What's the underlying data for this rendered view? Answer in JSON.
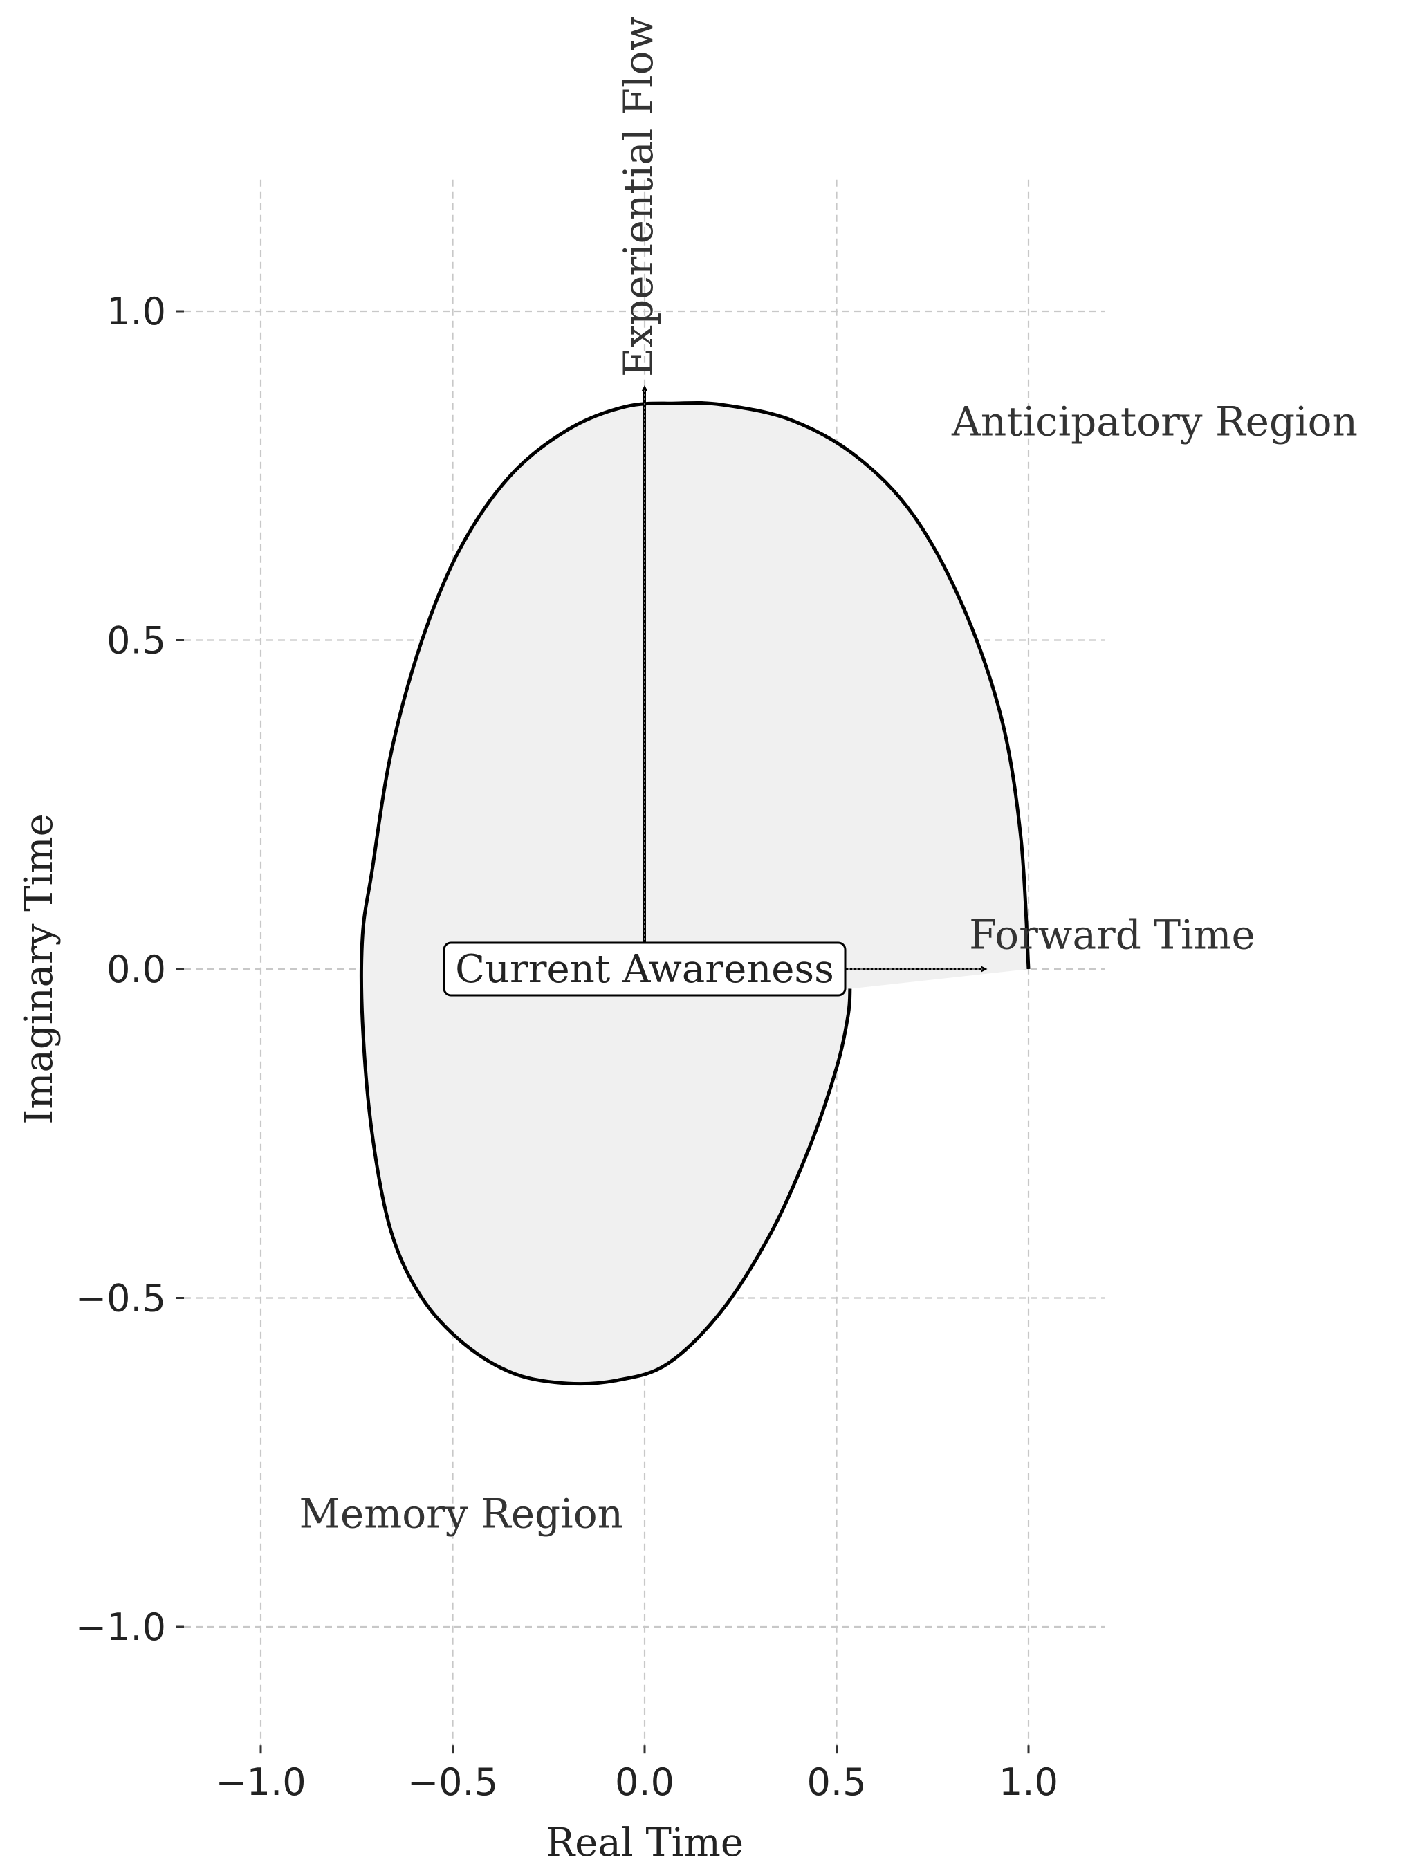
{
  "chart_data": {
    "type": "line",
    "title": "",
    "xlabel": "Real Time",
    "ylabel": "Imaginary Time",
    "xlim": [
      -1.2,
      1.2
    ],
    "ylim": [
      -1.18,
      1.2
    ],
    "xticks": [
      -1.0,
      -0.5,
      0.0,
      0.5,
      1.0
    ],
    "xtick_labels": [
      "−1.0",
      "−0.5",
      "0.0",
      "0.5",
      "1.0"
    ],
    "yticks": [
      -1.0,
      -0.5,
      0.0,
      0.5,
      1.0
    ],
    "ytick_labels": [
      "−1.0",
      "−0.5",
      "0.0",
      "0.5",
      "1.0"
    ],
    "grid": true,
    "curve": {
      "description_points": "closed spiral-like loop, shaded",
      "fill_color": "#f0f0f0",
      "line_color": "#000000",
      "x": [
        1.0,
        0.98,
        0.93,
        0.83,
        0.7,
        0.55,
        0.38,
        0.2,
        0.08,
        -0.05,
        -0.2,
        -0.35,
        -0.48,
        -0.58,
        -0.66,
        -0.71,
        -0.735,
        -0.735,
        -0.71,
        -0.66,
        -0.58,
        -0.47,
        -0.34,
        -0.2,
        -0.07,
        0.06,
        0.2,
        0.33,
        0.43,
        0.5,
        0.53,
        0.535
      ],
      "y": [
        0.0,
        0.2,
        0.38,
        0.55,
        0.69,
        0.78,
        0.835,
        0.858,
        0.86,
        0.855,
        0.82,
        0.75,
        0.64,
        0.5,
        0.33,
        0.15,
        0.05,
        -0.08,
        -0.25,
        -0.4,
        -0.5,
        -0.57,
        -0.615,
        -0.63,
        -0.625,
        -0.6,
        -0.52,
        -0.4,
        -0.27,
        -0.15,
        -0.07,
        -0.03
      ]
    },
    "arrows": [
      {
        "name": "vertical-arrow",
        "x0": 0.0,
        "y0": 0.0,
        "x1": 0.0,
        "y1": 0.88
      },
      {
        "name": "horizontal-arrow",
        "x0": 0.0,
        "y0": 0.0,
        "x1": 0.88,
        "y1": 0.0
      }
    ],
    "annotations": [
      {
        "key": "anticipatory",
        "text": "Anticipatory Region",
        "x": 0.8,
        "y": 0.83
      },
      {
        "key": "forward",
        "text": "Forward Time",
        "x": 1.2,
        "y": 0.05
      },
      {
        "key": "memory",
        "text": "Memory Region",
        "x": -0.9,
        "y": -0.83
      },
      {
        "key": "experiential",
        "text": "Experiential Flow",
        "x": 0.02,
        "y": 0.9,
        "rotate": -90
      }
    ],
    "center_label": {
      "text": "Current Awareness",
      "x": 0.0,
      "y": 0.0
    }
  }
}
